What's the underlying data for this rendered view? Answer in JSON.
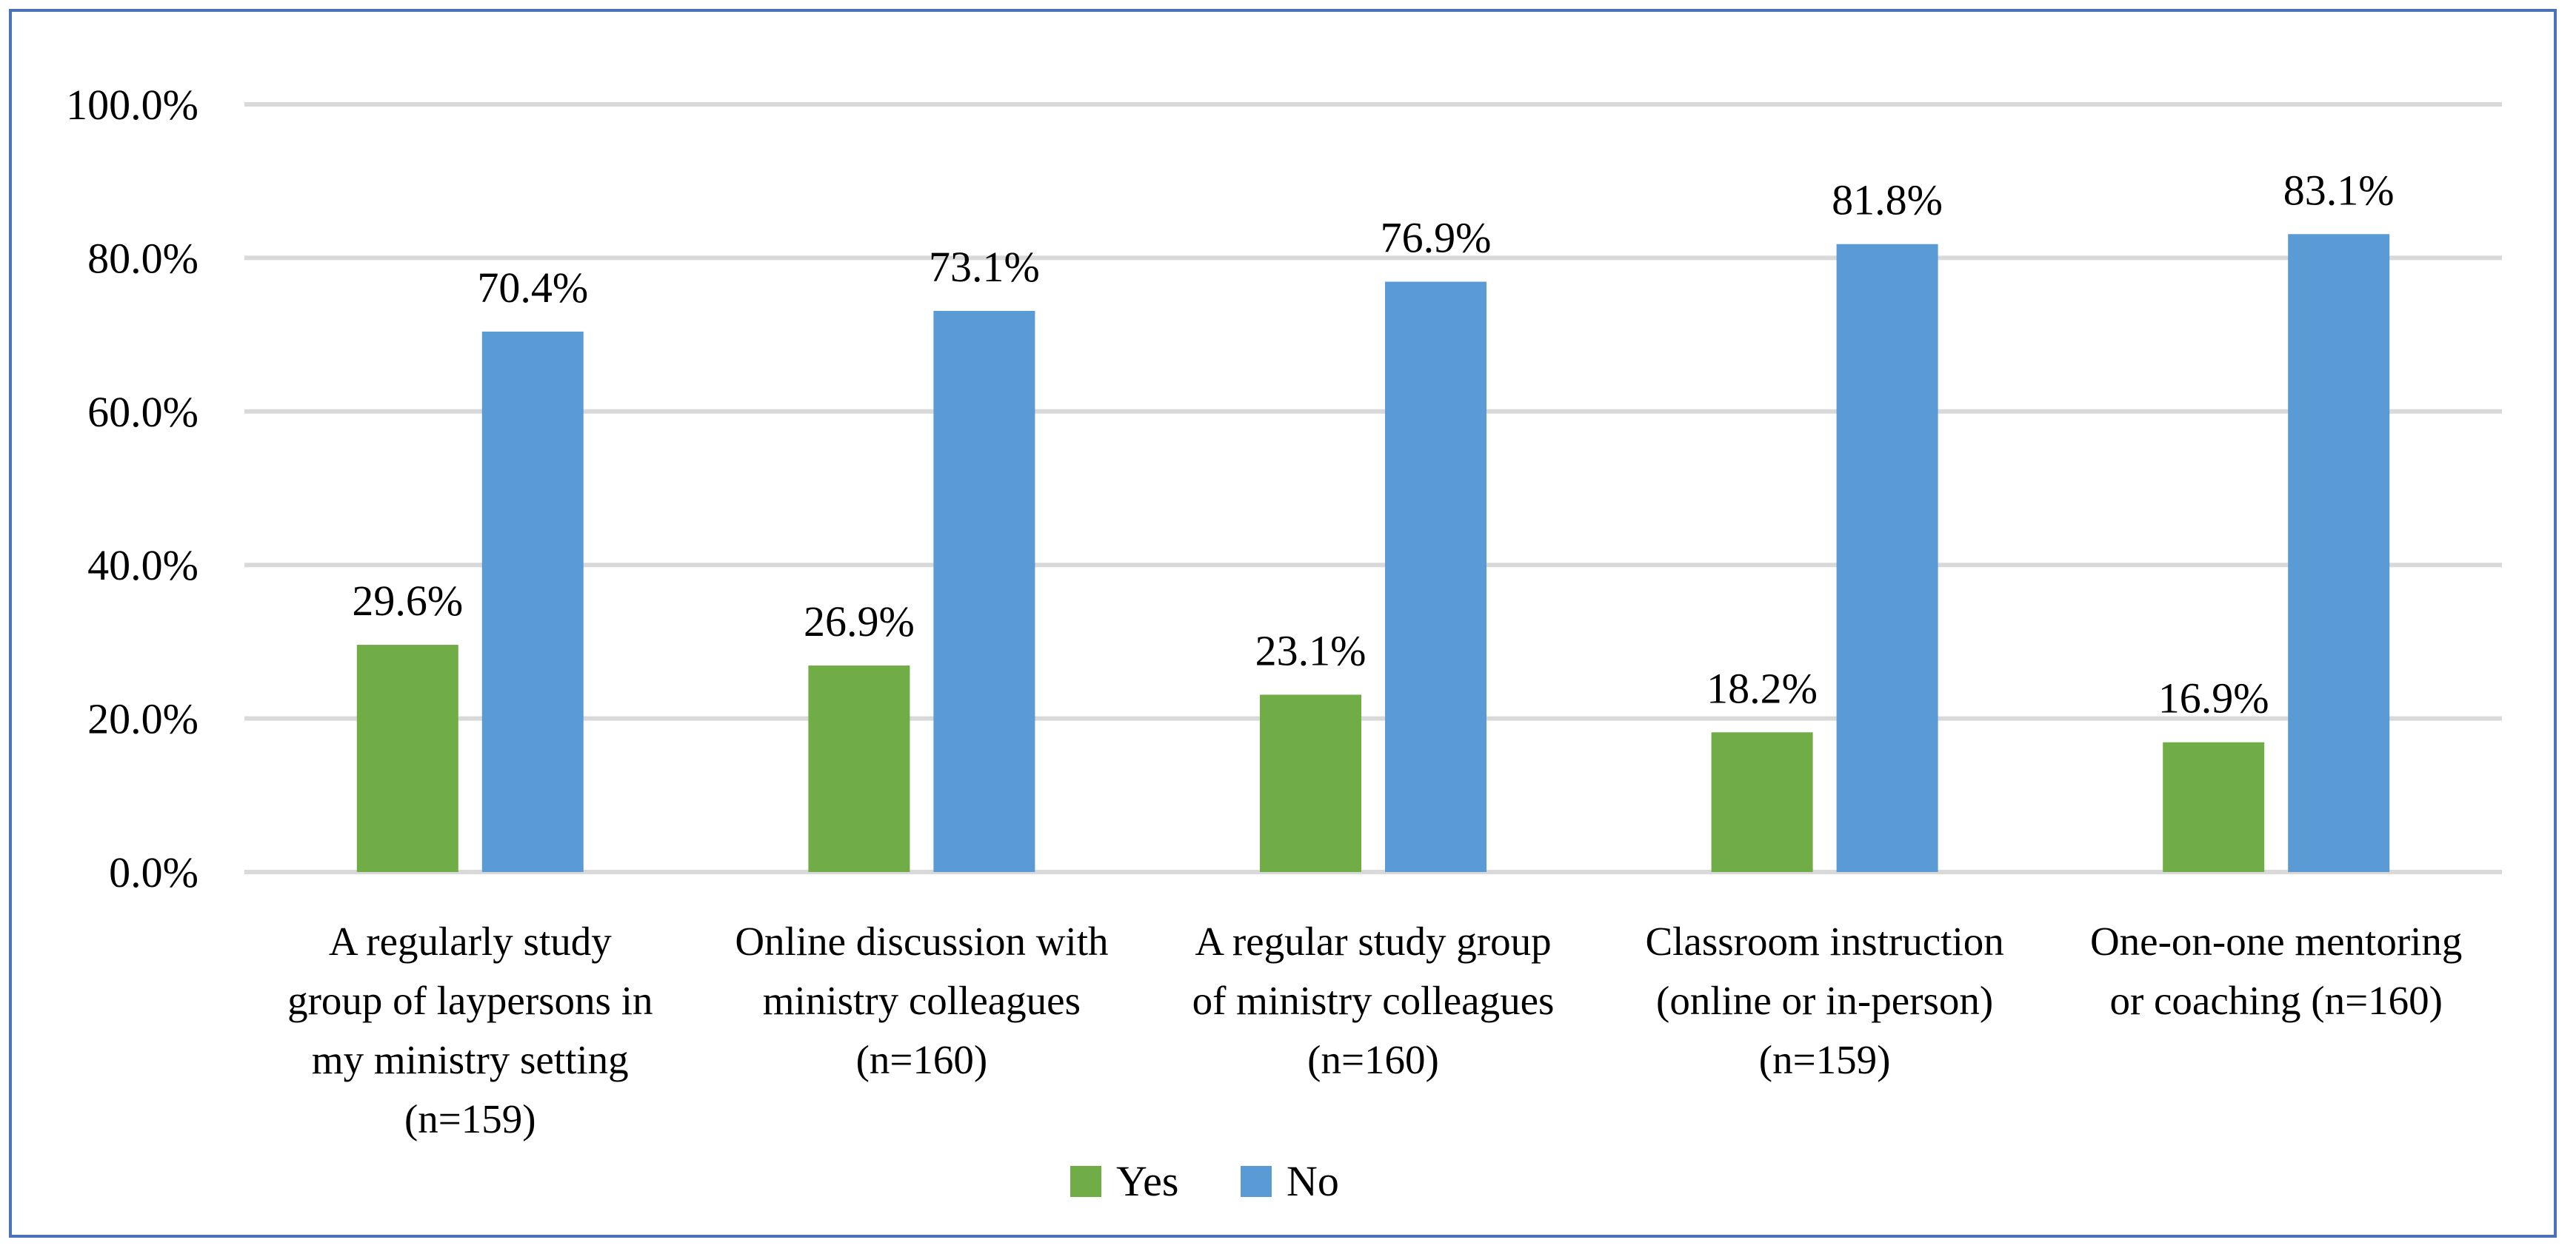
{
  "chart_data": {
    "type": "bar",
    "categories": [
      [
        "A regularly study",
        "group of laypersons in",
        "my ministry setting",
        "(n=159)"
      ],
      [
        "Online discussion with",
        "ministry colleagues",
        "(n=160)"
      ],
      [
        "A regular study group",
        "of ministry colleagues",
        "(n=160)"
      ],
      [
        "Classroom instruction",
        "(online or in-person)",
        "(n=159)"
      ],
      [
        "One-on-one mentoring",
        "or coaching (n=160)"
      ]
    ],
    "series": [
      {
        "name": "Yes",
        "color": "#70ad47",
        "values": [
          29.6,
          26.9,
          23.1,
          18.2,
          16.9
        ],
        "labels": [
          "29.6%",
          "26.9%",
          "23.1%",
          "18.2%",
          "16.9%"
        ]
      },
      {
        "name": "No",
        "color": "#5b9bd5",
        "values": [
          70.4,
          73.1,
          76.9,
          81.8,
          83.1
        ],
        "labels": [
          "70.4%",
          "73.1%",
          "76.9%",
          "81.8%",
          "83.1%"
        ]
      }
    ],
    "ylim": [
      0,
      100
    ],
    "yticks": [
      0,
      20,
      40,
      60,
      80,
      100
    ],
    "ytick_labels": [
      "0.0%",
      "20.0%",
      "40.0%",
      "60.0%",
      "80.0%",
      "100.0%"
    ],
    "grid": true,
    "legend_position": "bottom"
  }
}
